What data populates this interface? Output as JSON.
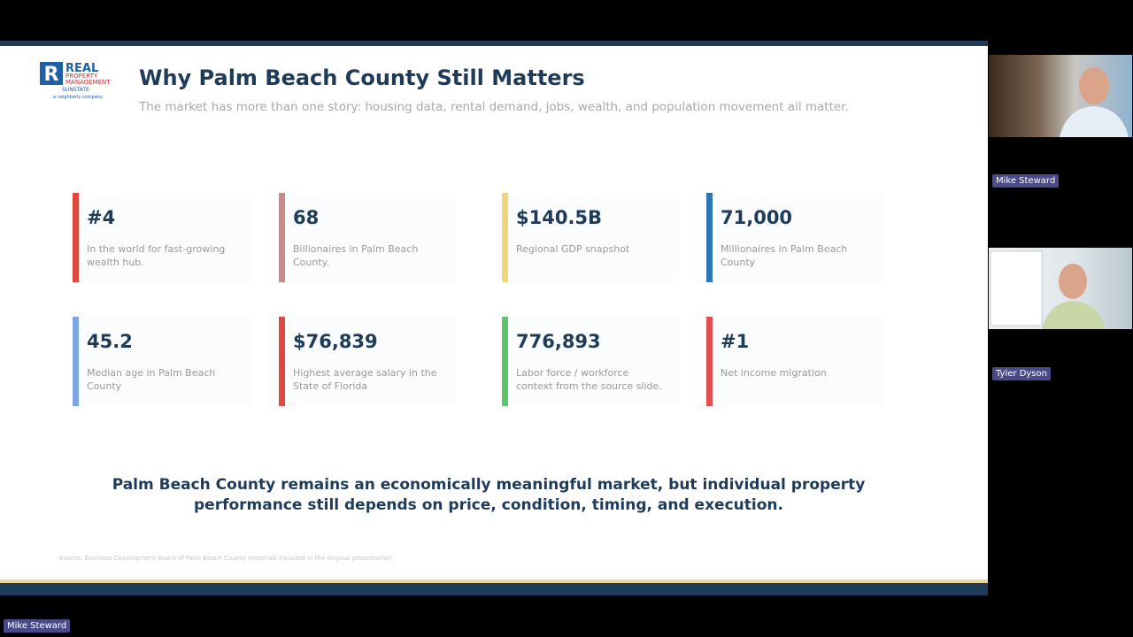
{
  "slide": {
    "logo": {
      "mark": "R",
      "brand": "REAL",
      "line2": "PROPERTY",
      "line3": "MANAGEMENT",
      "line4": "SUNSTATE",
      "tagline": "a neighborly company"
    },
    "title": "Why Palm Beach County Still Matters",
    "subtitle": "The market has more than one story: housing data, rental demand, jobs, wealth, and population movement all matter.",
    "stats": [
      {
        "value": "#4",
        "label": "In the world for fast-growing wealth hub.",
        "color": "#e0483f"
      },
      {
        "value": "68",
        "label": "Billionaires in Palm Beach County.",
        "color": "#c98b86"
      },
      {
        "value": "$140.5B",
        "label": "Regional GDP snapshot",
        "color": "#f2d67a"
      },
      {
        "value": "71,000",
        "label": "Millionaires in Palm Beach County",
        "color": "#2e75b6"
      },
      {
        "value": "45.2",
        "label": "Median age in Palm Beach County",
        "color": "#7da7e0"
      },
      {
        "value": "$76,839",
        "label": "Highest average salary in the State of Florida",
        "color": "#e0483f"
      },
      {
        "value": "776,893",
        "label": "Labor force / workforce context from the source slide.",
        "color": "#5cc46a"
      },
      {
        "value": "#1",
        "label": "Net income migration",
        "color": "#e05050"
      }
    ],
    "conclusion": "Palm Beach County remains an economically meaningful market, but individual property performance still depends on price, condition, timing, and execution.",
    "source": "Source: Business Development Board of Palm Beach County materials included in the original presentation."
  },
  "participants": [
    {
      "name": "Mike Steward"
    },
    {
      "name": "Tyler Dyson"
    }
  ],
  "active_speaker": "Mike Steward"
}
